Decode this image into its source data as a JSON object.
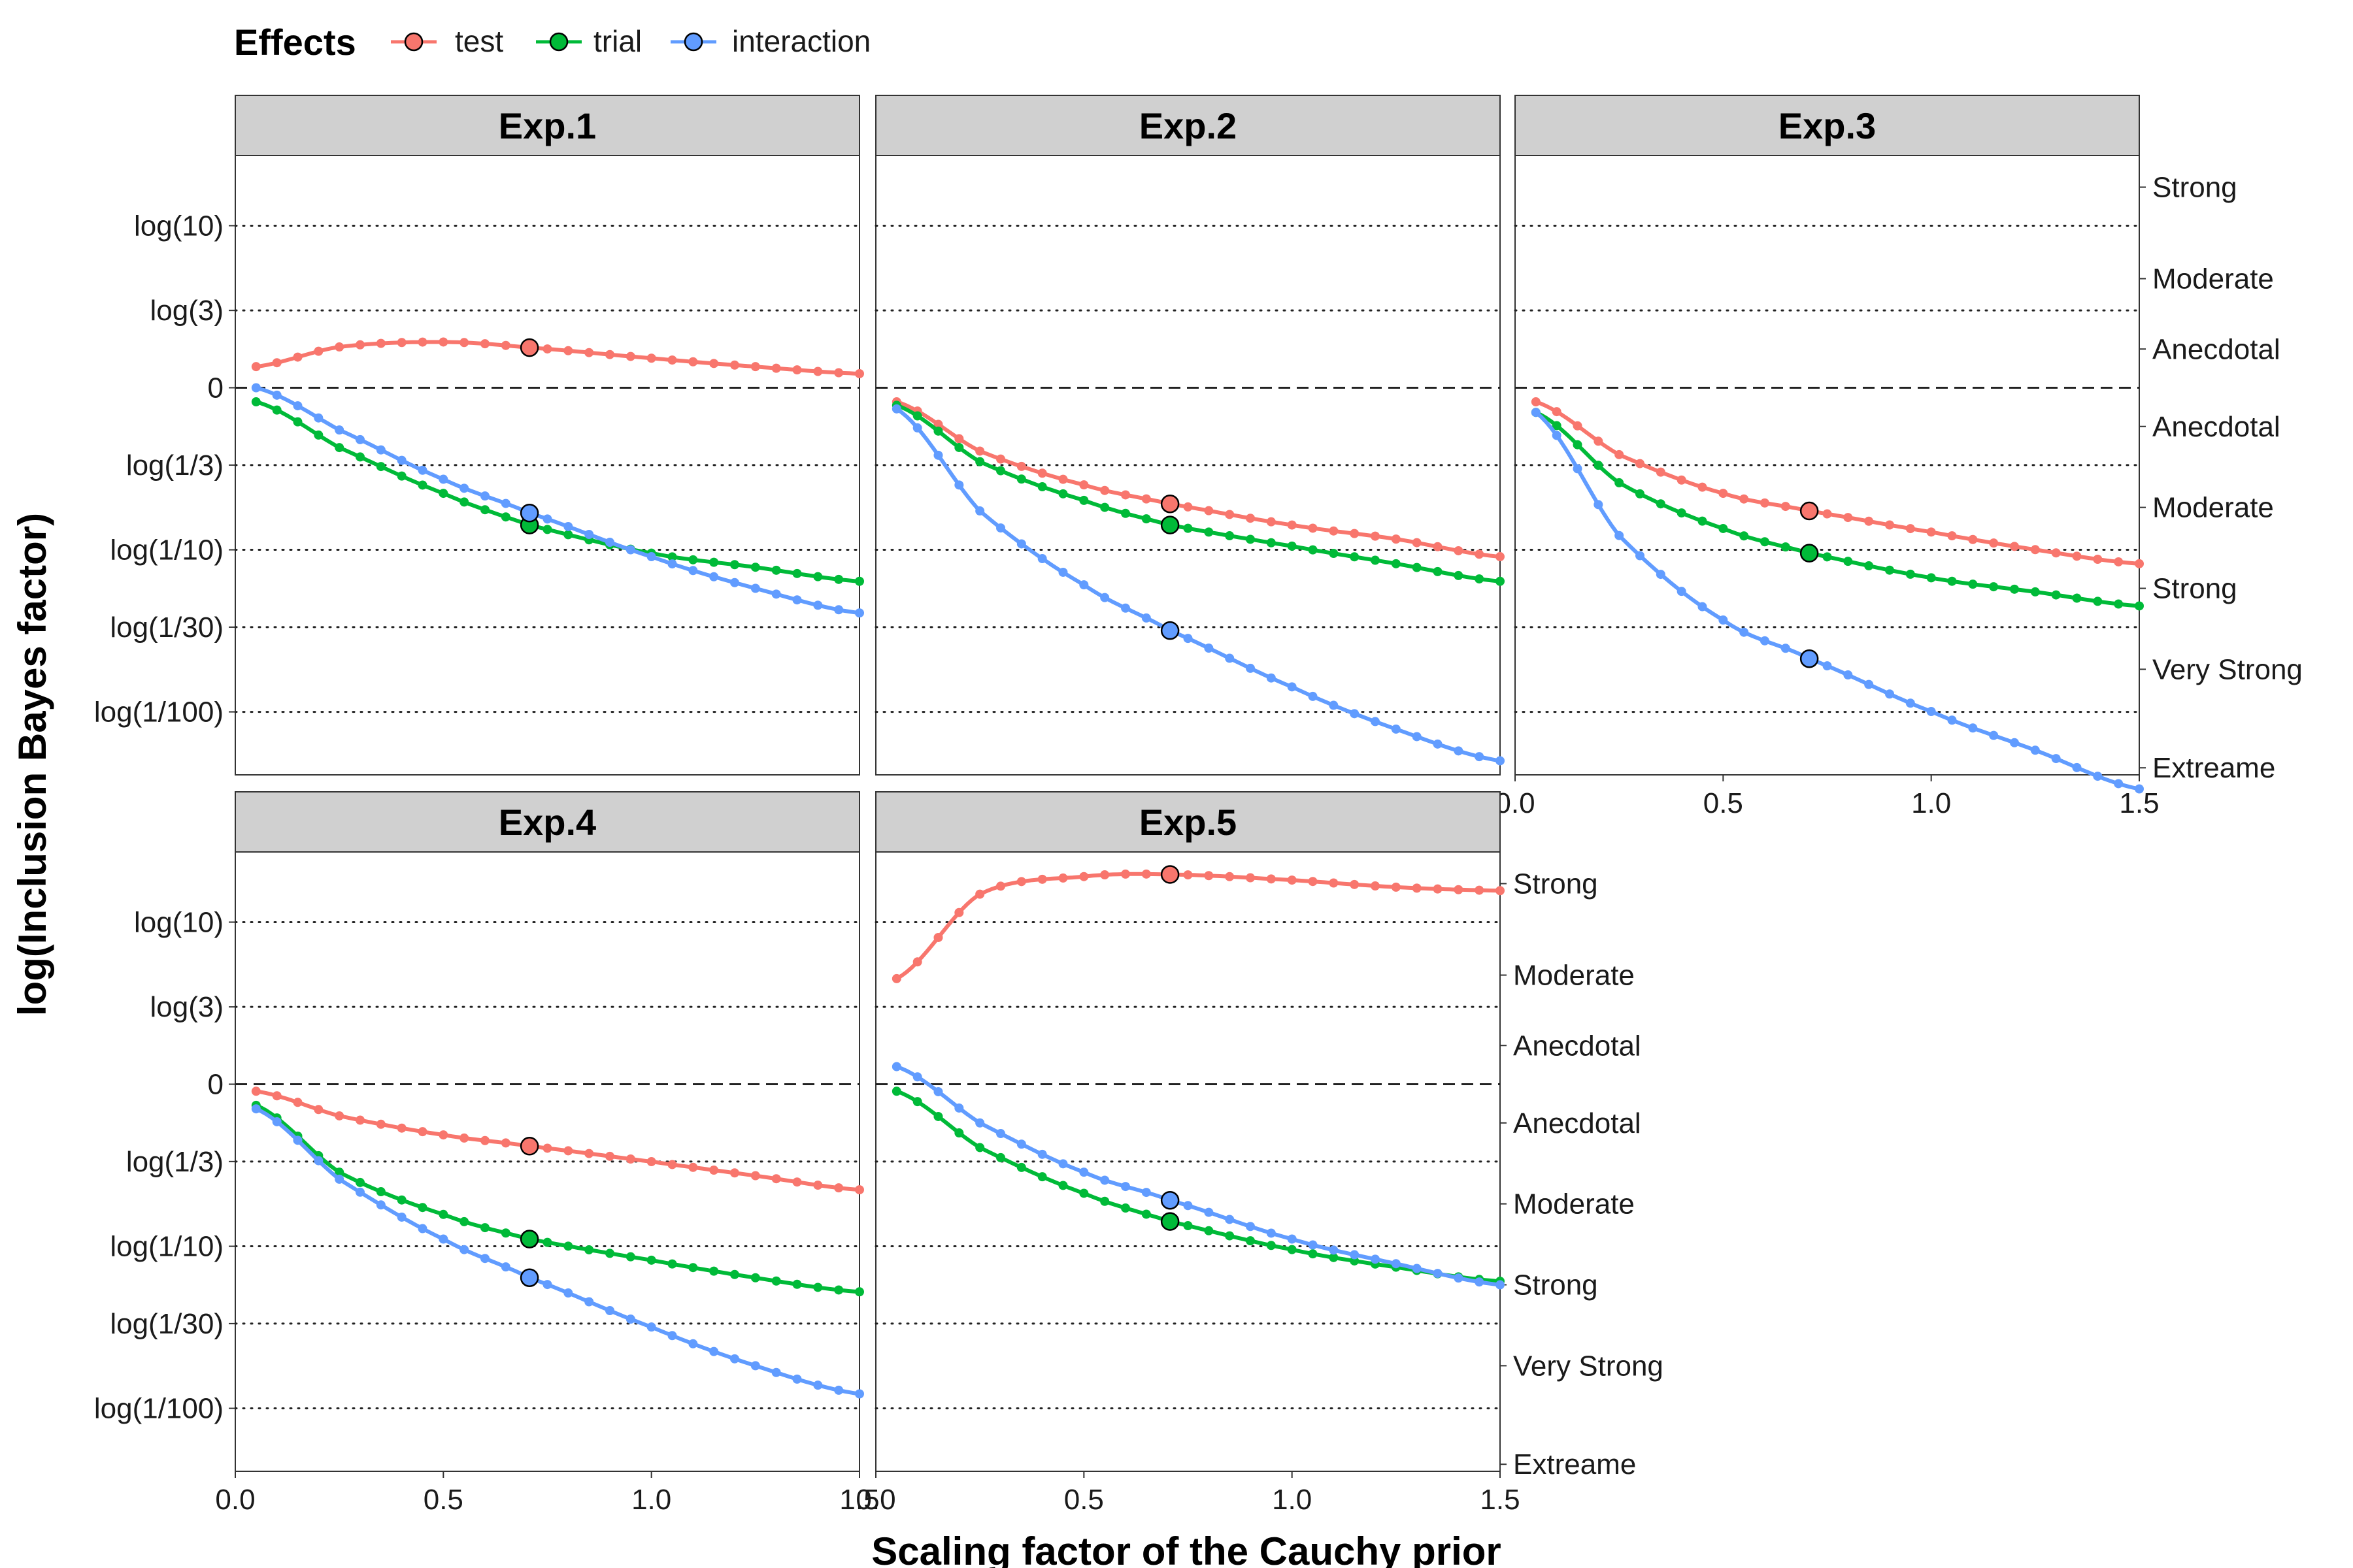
{
  "chart_data": {
    "type": "line",
    "x_axis_label": "Scaling factor of the Cauchy prior",
    "y_axis_label": "log(Inclusion Bayes factor)",
    "legend": {
      "title": "Effects",
      "placement": "top-left",
      "entries": [
        {
          "name": "test",
          "color": "#F8766D"
        },
        {
          "name": "trial",
          "color": "#00BA38"
        },
        {
          "name": "interaction",
          "color": "#619CFF"
        }
      ]
    },
    "x_range": [
      0,
      1.5
    ],
    "y_range_ln": [
      -5.5,
      3.3
    ],
    "x_ticks": [
      {
        "value": 0,
        "label": "0.0"
      },
      {
        "value": 0.5,
        "label": "0.5"
      },
      {
        "value": 1.0,
        "label": "1.0"
      },
      {
        "value": 1.5,
        "label": "1.5"
      }
    ],
    "y_ticks": [
      {
        "value": 2.3026,
        "label": "log(10)"
      },
      {
        "value": 1.0986,
        "label": "log(3)"
      },
      {
        "value": 0,
        "label": "0"
      },
      {
        "value": -1.0986,
        "label": "log(1/3)"
      },
      {
        "value": -2.3026,
        "label": "log(1/10)"
      },
      {
        "value": -3.4012,
        "label": "log(1/30)"
      },
      {
        "value": -4.6052,
        "label": "log(1/100)"
      }
    ],
    "evidence_labels": [
      {
        "label": "Strong",
        "center": 2.85
      },
      {
        "label": "Moderate",
        "center": 1.55
      },
      {
        "label": "Anecdotal",
        "center": 0.55
      },
      {
        "label": "Anecdotal",
        "center": -0.55
      },
      {
        "label": "Moderate",
        "center": -1.7
      },
      {
        "label": "Strong",
        "center": -2.85
      },
      {
        "label": "Very Strong",
        "center": -4.0
      },
      {
        "label": "Extreame",
        "center": -5.4
      }
    ],
    "reference_lines": {
      "dashed": [
        0
      ],
      "dotted": [
        2.3026,
        1.0986,
        -1.0986,
        -2.3026,
        -3.4012,
        -4.6052
      ]
    },
    "highlight_x": 0.707,
    "panels": [
      {
        "name": "Exp.1",
        "series": [
          {
            "name": "test",
            "x": [
              0.05,
              0.25,
              0.5,
              0.707,
              1.0,
              1.25,
              1.5
            ],
            "y": [
              0.3,
              0.58,
              0.65,
              0.57,
              0.42,
              0.3,
              0.2
            ]
          },
          {
            "name": "trial",
            "x": [
              0.05,
              0.25,
              0.5,
              0.707,
              1.0,
              1.25,
              1.5
            ],
            "y": [
              -0.2,
              -0.85,
              -1.5,
              -1.95,
              -2.35,
              -2.55,
              -2.75
            ]
          },
          {
            "name": "interaction",
            "x": [
              0.05,
              0.25,
              0.5,
              0.707,
              1.0,
              1.25,
              1.5
            ],
            "y": [
              0.0,
              -0.6,
              -1.3,
              -1.78,
              -2.4,
              -2.85,
              -3.2
            ]
          }
        ]
      },
      {
        "name": "Exp.2",
        "series": [
          {
            "name": "test",
            "x": [
              0.05,
              0.25,
              0.5,
              0.707,
              1.0,
              1.25,
              1.5
            ],
            "y": [
              -0.2,
              -0.9,
              -1.38,
              -1.65,
              -1.95,
              -2.15,
              -2.4
            ]
          },
          {
            "name": "trial",
            "x": [
              0.05,
              0.25,
              0.5,
              0.707,
              1.0,
              1.25,
              1.5
            ],
            "y": [
              -0.25,
              -1.05,
              -1.6,
              -1.95,
              -2.25,
              -2.5,
              -2.75
            ]
          },
          {
            "name": "interaction",
            "x": [
              0.05,
              0.25,
              0.5,
              0.707,
              1.0,
              1.25,
              1.5
            ],
            "y": [
              -0.3,
              -1.75,
              -2.8,
              -3.45,
              -4.25,
              -4.85,
              -5.3
            ]
          }
        ]
      },
      {
        "name": "Exp.3",
        "series": [
          {
            "name": "test",
            "x": [
              0.05,
              0.25,
              0.5,
              0.707,
              1.0,
              1.25,
              1.5
            ],
            "y": [
              -0.2,
              -0.95,
              -1.5,
              -1.75,
              -2.05,
              -2.3,
              -2.5
            ]
          },
          {
            "name": "trial",
            "x": [
              0.05,
              0.25,
              0.5,
              0.707,
              1.0,
              1.25,
              1.5
            ],
            "y": [
              -0.35,
              -1.35,
              -2.0,
              -2.35,
              -2.7,
              -2.9,
              -3.1
            ]
          },
          {
            "name": "interaction",
            "x": [
              0.05,
              0.25,
              0.5,
              0.707,
              1.0,
              1.25,
              1.5
            ],
            "y": [
              -0.35,
              -2.1,
              -3.3,
              -3.85,
              -4.6,
              -5.15,
              -5.7
            ]
          }
        ]
      },
      {
        "name": "Exp.4",
        "series": [
          {
            "name": "test",
            "x": [
              0.05,
              0.25,
              0.5,
              0.707,
              1.0,
              1.25,
              1.5
            ],
            "y": [
              -0.1,
              -0.45,
              -0.72,
              -0.88,
              -1.1,
              -1.3,
              -1.5
            ]
          },
          {
            "name": "trial",
            "x": [
              0.05,
              0.25,
              0.5,
              0.707,
              1.0,
              1.25,
              1.5
            ],
            "y": [
              -0.3,
              -1.25,
              -1.85,
              -2.2,
              -2.5,
              -2.75,
              -2.95
            ]
          },
          {
            "name": "interaction",
            "x": [
              0.05,
              0.25,
              0.5,
              0.707,
              1.0,
              1.25,
              1.5
            ],
            "y": [
              -0.35,
              -1.35,
              -2.2,
              -2.75,
              -3.45,
              -4.0,
              -4.4
            ]
          }
        ]
      },
      {
        "name": "Exp.5",
        "series": [
          {
            "name": "test",
            "x": [
              0.05,
              0.25,
              0.5,
              0.707,
              1.0,
              1.25,
              1.5
            ],
            "y": [
              1.5,
              2.7,
              2.95,
              2.98,
              2.9,
              2.8,
              2.75
            ]
          },
          {
            "name": "trial",
            "x": [
              0.05,
              0.25,
              0.5,
              0.707,
              1.0,
              1.25,
              1.5
            ],
            "y": [
              -0.1,
              -0.9,
              -1.55,
              -1.95,
              -2.35,
              -2.6,
              -2.8
            ]
          },
          {
            "name": "interaction",
            "x": [
              0.05,
              0.25,
              0.5,
              0.707,
              1.0,
              1.25,
              1.5
            ],
            "y": [
              0.25,
              -0.55,
              -1.25,
              -1.65,
              -2.2,
              -2.55,
              -2.85
            ]
          }
        ]
      }
    ]
  }
}
